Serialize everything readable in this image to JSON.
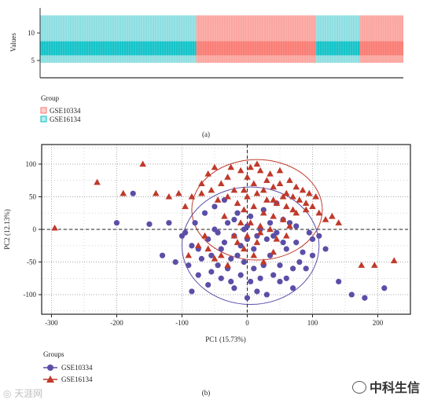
{
  "chart_data": [
    {
      "panel_label": "(a)",
      "type": "bar",
      "ylabel": "Values",
      "yticks": [
        5,
        10
      ],
      "ylim": [
        0,
        14
      ],
      "legend_title": "Group",
      "legend_position": "bottom-left",
      "colors": {
        "GSE10334": "#f8766d",
        "GSE16134": "#00bfc4"
      },
      "segments": [
        {
          "group": "GSE16134",
          "start": 0,
          "end": 0.43
        },
        {
          "group": "GSE10334",
          "start": 0.43,
          "end": 0.76
        },
        {
          "group": "GSE16134",
          "start": 0.76,
          "end": 0.88
        },
        {
          "group": "GSE10334",
          "start": 0.88,
          "end": 1.0
        }
      ],
      "series": [
        {
          "name": "GSE10334",
          "color": "#f8766d",
          "marker": "square"
        },
        {
          "name": "GSE16134",
          "color": "#00bfc4",
          "marker": "square"
        }
      ],
      "bands": {
        "outer": [
          3,
          12.5
        ],
        "inner": [
          4.5,
          7.3
        ]
      }
    },
    {
      "panel_label": "(b)",
      "type": "scatter",
      "xlabel": "PC1 (15.73%)",
      "ylabel": "PC2 (12.13%)",
      "xlim": [
        -315,
        250
      ],
      "ylim": [
        -130,
        130
      ],
      "xticks": [
        -300,
        -200,
        -100,
        0,
        100,
        200
      ],
      "yticks": [
        -100,
        -50,
        0,
        50,
        100
      ],
      "grid": true,
      "legend_title": "Groups",
      "legend_position": "bottom-left",
      "reference_lines": {
        "x": 0,
        "y": 0
      },
      "ellipses": [
        {
          "group": "GSE10334",
          "color": "#c0392b",
          "cx": 15,
          "cy": 30,
          "rx": 100,
          "ry": 77
        },
        {
          "group": "GSE16134",
          "color": "#5a4fa8",
          "cx": 5,
          "cy": -25,
          "rx": 105,
          "ry": 90
        }
      ],
      "series": [
        {
          "name": "GSE10334",
          "marker": "circle",
          "color": "#5b4ea6",
          "points": [
            [
              -175,
              55
            ],
            [
              -200,
              10
            ],
            [
              -150,
              8
            ],
            [
              -120,
              10
            ],
            [
              -95,
              -5
            ],
            [
              -85,
              -25
            ],
            [
              -85,
              -95
            ],
            [
              -60,
              -85
            ],
            [
              -30,
              -60
            ],
            [
              -70,
              -45
            ],
            [
              -60,
              -15
            ],
            [
              -40,
              -30
            ],
            [
              -20,
              -10
            ],
            [
              0,
              5
            ],
            [
              20,
              0
            ],
            [
              40,
              -10
            ],
            [
              60,
              -30
            ],
            [
              80,
              -50
            ],
            [
              100,
              -15
            ],
            [
              100,
              -40
            ],
            [
              90,
              -60
            ],
            [
              70,
              -90
            ],
            [
              50,
              -80
            ],
            [
              30,
              -100
            ],
            [
              15,
              -95
            ],
            [
              0,
              -105
            ],
            [
              -20,
              -90
            ],
            [
              -40,
              -75
            ],
            [
              -55,
              -65
            ],
            [
              -75,
              -70
            ],
            [
              -90,
              -55
            ],
            [
              -110,
              -50
            ],
            [
              -10,
              -25
            ],
            [
              10,
              -30
            ],
            [
              25,
              -55
            ],
            [
              35,
              -40
            ],
            [
              45,
              -5
            ],
            [
              55,
              15
            ],
            [
              65,
              10
            ],
            [
              75,
              -20
            ],
            [
              -5,
              -50
            ],
            [
              -25,
              -45
            ],
            [
              -45,
              -5
            ],
            [
              -65,
              25
            ],
            [
              -80,
              10
            ],
            [
              -50,
              35
            ],
            [
              -35,
              45
            ],
            [
              -15,
              25
            ],
            [
              5,
              20
            ],
            [
              25,
              30
            ],
            [
              45,
              40
            ],
            [
              -30,
              10
            ],
            [
              -10,
              -70
            ],
            [
              10,
              -60
            ],
            [
              30,
              -15
            ],
            [
              50,
              -55
            ],
            [
              70,
              -60
            ],
            [
              85,
              -35
            ],
            [
              -15,
              -40
            ],
            [
              -55,
              -40
            ],
            [
              -45,
              -55
            ],
            [
              -25,
              -80
            ],
            [
              5,
              -80
            ],
            [
              20,
              -75
            ],
            [
              40,
              -70
            ],
            [
              60,
              -75
            ],
            [
              -100,
              -10
            ],
            [
              -130,
              -40
            ],
            [
              -75,
              -30
            ],
            [
              -50,
              0
            ],
            [
              -20,
              15
            ],
            [
              0,
              -15
            ],
            [
              15,
              -10
            ],
            [
              35,
              10
            ],
            [
              55,
              -20
            ],
            [
              75,
              5
            ],
            [
              95,
              -5
            ],
            [
              120,
              -30
            ],
            [
              -35,
              -20
            ],
            [
              -5,
              0
            ],
            [
              160,
              -100
            ],
            [
              180,
              -105
            ],
            [
              210,
              -90
            ],
            [
              140,
              -80
            ],
            [
              110,
              -10
            ]
          ]
        },
        {
          "name": "GSE16134",
          "marker": "triangle",
          "color": "#c0392b",
          "points": [
            [
              -295,
              2
            ],
            [
              -230,
              72
            ],
            [
              -190,
              55
            ],
            [
              -160,
              100
            ],
            [
              -140,
              55
            ],
            [
              -120,
              50
            ],
            [
              -105,
              55
            ],
            [
              -95,
              35
            ],
            [
              -90,
              -40
            ],
            [
              -70,
              70
            ],
            [
              -60,
              85
            ],
            [
              -50,
              95
            ],
            [
              -40,
              70
            ],
            [
              -30,
              80
            ],
            [
              -20,
              60
            ],
            [
              -10,
              90
            ],
            [
              0,
              80
            ],
            [
              10,
              70
            ],
            [
              20,
              90
            ],
            [
              30,
              75
            ],
            [
              40,
              65
            ],
            [
              50,
              70
            ],
            [
              60,
              55
            ],
            [
              70,
              50
            ],
            [
              80,
              45
            ],
            [
              90,
              40
            ],
            [
              100,
              35
            ],
            [
              110,
              25
            ],
            [
              120,
              15
            ],
            [
              -45,
              45
            ],
            [
              -30,
              50
            ],
            [
              -15,
              40
            ],
            [
              0,
              50
            ],
            [
              15,
              55
            ],
            [
              30,
              45
            ],
            [
              45,
              40
            ],
            [
              60,
              35
            ],
            [
              75,
              25
            ],
            [
              90,
              30
            ],
            [
              -5,
              30
            ],
            [
              10,
              35
            ],
            [
              25,
              25
            ],
            [
              40,
              20
            ],
            [
              55,
              15
            ],
            [
              5,
              10
            ],
            [
              20,
              5
            ],
            [
              -20,
              -10
            ],
            [
              -5,
              -30
            ],
            [
              10,
              -40
            ],
            [
              25,
              -50
            ],
            [
              40,
              -35
            ],
            [
              -40,
              -40
            ],
            [
              -60,
              -30
            ],
            [
              -75,
              -25
            ],
            [
              -50,
              -45
            ],
            [
              -30,
              -55
            ],
            [
              175,
              -55
            ],
            [
              195,
              -55
            ],
            [
              225,
              -48
            ],
            [
              140,
              10
            ],
            [
              130,
              20
            ],
            [
              105,
              50
            ],
            [
              85,
              60
            ],
            [
              65,
              75
            ],
            [
              50,
              90
            ],
            [
              35,
              85
            ],
            [
              -70,
              55
            ],
            [
              -55,
              60
            ],
            [
              -85,
              50
            ],
            [
              15,
              100
            ],
            [
              5,
              95
            ],
            [
              -25,
              95
            ],
            [
              55,
              50
            ],
            [
              75,
              65
            ],
            [
              95,
              55
            ],
            [
              -5,
              60
            ],
            [
              25,
              60
            ],
            [
              70,
              30
            ],
            [
              35,
              0
            ],
            [
              0,
              -10
            ],
            [
              -15,
              -20
            ],
            [
              15,
              -20
            ],
            [
              60,
              -10
            ],
            [
              -35,
              20
            ],
            [
              -10,
              10
            ],
            [
              45,
              -15
            ],
            [
              -65,
              -10
            ],
            [
              20,
              -5
            ],
            [
              40,
              45
            ],
            [
              65,
              5
            ]
          ]
        }
      ]
    }
  ]
}
